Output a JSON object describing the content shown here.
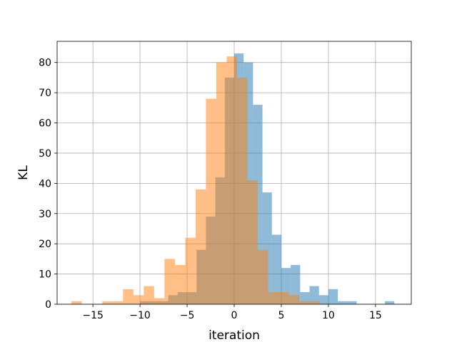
{
  "chart_data": {
    "type": "histogram",
    "title": "",
    "xlabel": "iteration",
    "ylabel": "KL",
    "xlim": [
      -18.8,
      18.8
    ],
    "ylim": [
      0,
      87
    ],
    "xticks": [
      -15,
      -10,
      -5,
      0,
      5,
      10,
      15
    ],
    "xtick_labels": [
      "−15",
      "−10",
      "−5",
      "0",
      "5",
      "10",
      "15"
    ],
    "yticks": [
      0,
      10,
      20,
      30,
      40,
      50,
      60,
      70,
      80
    ],
    "ytick_labels": [
      "0",
      "10",
      "20",
      "30",
      "40",
      "50",
      "60",
      "70",
      "80"
    ],
    "grid": true,
    "legend": "none",
    "series": [
      {
        "color": "#1f77b4",
        "alpha": 0.5,
        "bins": [
          [
            -10,
            -9,
            1
          ],
          [
            -9,
            -8,
            1
          ],
          [
            -8,
            -7,
            1
          ],
          [
            -7,
            -6,
            3
          ],
          [
            -6,
            -5,
            4
          ],
          [
            -5,
            -4,
            4
          ],
          [
            -4,
            -3,
            18
          ],
          [
            -3,
            -2,
            29
          ],
          [
            -2,
            -1,
            42
          ],
          [
            -1,
            0,
            75
          ],
          [
            0,
            1,
            83
          ],
          [
            1,
            2,
            80
          ],
          [
            2,
            3,
            66
          ],
          [
            3,
            4,
            37
          ],
          [
            4,
            5,
            23
          ],
          [
            5,
            6,
            12
          ],
          [
            6,
            7,
            13
          ],
          [
            7,
            8,
            4
          ],
          [
            8,
            9,
            6
          ],
          [
            9,
            10,
            3
          ],
          [
            10,
            11,
            5
          ],
          [
            11,
            12,
            1
          ],
          [
            12,
            13,
            1
          ],
          [
            13,
            14,
            0
          ],
          [
            14,
            15,
            0
          ],
          [
            15,
            16,
            0
          ],
          [
            16,
            17,
            1
          ]
        ]
      },
      {
        "color": "#ff7f0e",
        "alpha": 0.5,
        "bins": [
          [
            -17.3,
            -16.2,
            1
          ],
          [
            -16.2,
            -15.1,
            0
          ],
          [
            -15.1,
            -14.0,
            0
          ],
          [
            -14.0,
            -12.9,
            1
          ],
          [
            -12.9,
            -11.8,
            1
          ],
          [
            -11.8,
            -10.7,
            5
          ],
          [
            -10.7,
            -9.6,
            3
          ],
          [
            -9.6,
            -8.5,
            6
          ],
          [
            -8.5,
            -7.4,
            2
          ],
          [
            -7.4,
            -6.3,
            15
          ],
          [
            -6.3,
            -5.2,
            13
          ],
          [
            -5.2,
            -4.1,
            22
          ],
          [
            -4.1,
            -3.0,
            38
          ],
          [
            -3.0,
            -1.9,
            68
          ],
          [
            -1.9,
            -0.8,
            80
          ],
          [
            -0.8,
            0.3,
            82
          ],
          [
            0.3,
            1.4,
            75
          ],
          [
            1.4,
            2.5,
            41
          ],
          [
            2.5,
            3.6,
            18
          ],
          [
            3.6,
            4.7,
            4
          ],
          [
            4.7,
            5.8,
            4
          ],
          [
            5.8,
            6.9,
            3
          ],
          [
            6.9,
            8.0,
            1
          ],
          [
            8.0,
            9.1,
            1
          ]
        ]
      }
    ]
  }
}
